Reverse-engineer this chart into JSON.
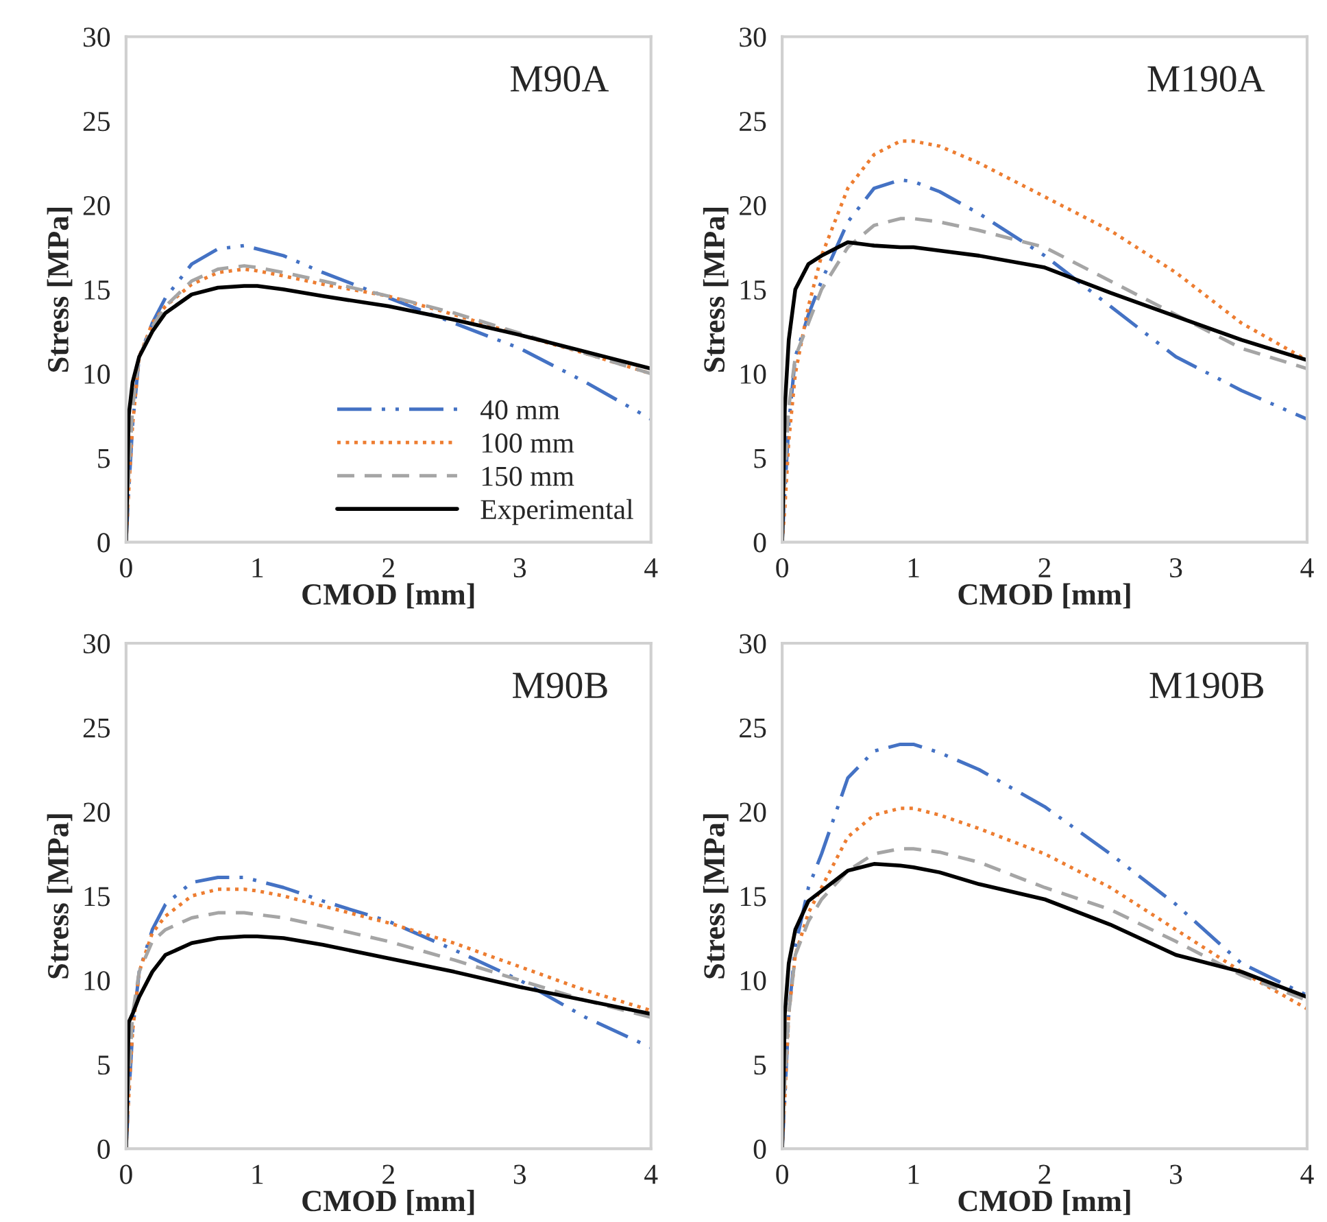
{
  "chart_data": [
    {
      "type": "line",
      "annotations": [
        "M90A"
      ],
      "xlabel": "CMOD [mm]",
      "ylabel": "Stress [MPa]",
      "xlim": [
        0,
        4
      ],
      "ylim": [
        0,
        30
      ],
      "xticks": [
        0,
        1,
        2,
        3,
        4
      ],
      "yticks": [
        0,
        5,
        10,
        15,
        20,
        25,
        30
      ],
      "grid": false,
      "legend": "bottom right",
      "x": [
        0,
        0.02,
        0.05,
        0.1,
        0.2,
        0.3,
        0.5,
        0.7,
        0.9,
        1.0,
        1.2,
        1.5,
        2,
        2.5,
        3,
        3.5,
        4
      ],
      "series": [
        {
          "name": "40 mm",
          "color": "#4472c4",
          "line_style": "dashdot",
          "values": [
            0,
            3,
            7,
            11,
            13,
            14.5,
            16.5,
            17.4,
            17.6,
            17.4,
            17,
            16,
            14.5,
            13,
            11.5,
            9.5,
            7.3
          ]
        },
        {
          "name": "100 mm",
          "color": "#ed7d31",
          "line_style": "dotted",
          "values": [
            0,
            3,
            7,
            11,
            13,
            14,
            15.3,
            16,
            16.2,
            16.1,
            15.8,
            15.3,
            14.6,
            13.5,
            12.3,
            11.2,
            10
          ]
        },
        {
          "name": "150 mm",
          "color": "#a5a5a5",
          "line_style": "dashed",
          "values": [
            0,
            4,
            8,
            11,
            12.8,
            14,
            15.5,
            16.2,
            16.4,
            16.3,
            16,
            15.5,
            14.6,
            13.6,
            12.4,
            11.2,
            10
          ]
        },
        {
          "name": "Experimental",
          "color": "#000000",
          "line_style": "solid",
          "values": [
            0,
            7.5,
            9.5,
            11,
            12.5,
            13.6,
            14.7,
            15.1,
            15.2,
            15.2,
            15,
            14.6,
            14,
            13.2,
            12.3,
            11.3,
            10.3
          ]
        }
      ]
    },
    {
      "type": "line",
      "annotations": [
        "M190A"
      ],
      "xlabel": "CMOD [mm]",
      "ylabel": "Stress [MPa]",
      "xlim": [
        0,
        4
      ],
      "ylim": [
        0,
        30
      ],
      "xticks": [
        0,
        1,
        2,
        3,
        4
      ],
      "yticks": [
        0,
        5,
        10,
        15,
        20,
        25,
        30
      ],
      "grid": false,
      "x": [
        0,
        0.02,
        0.05,
        0.1,
        0.2,
        0.3,
        0.5,
        0.7,
        0.9,
        1.0,
        1.2,
        1.5,
        2,
        2.5,
        3,
        3.5,
        4
      ],
      "series": [
        {
          "color": "#4472c4",
          "line_style": "dashdot",
          "values": [
            0,
            3,
            7,
            11,
            13.5,
            15.5,
            19,
            21,
            21.5,
            21.4,
            20.8,
            19.5,
            17,
            14,
            11,
            9,
            7.3
          ]
        },
        {
          "color": "#ed7d31",
          "line_style": "dotted",
          "values": [
            0,
            2,
            6,
            10,
            14,
            17,
            21,
            23,
            23.8,
            23.8,
            23.5,
            22.5,
            20.5,
            18.5,
            16,
            13,
            10.8
          ]
        },
        {
          "color": "#a5a5a5",
          "line_style": "dashed",
          "values": [
            0,
            4,
            8,
            11,
            13,
            15,
            17.5,
            18.8,
            19.2,
            19.2,
            19,
            18.5,
            17.5,
            15.5,
            13.5,
            11.5,
            10.3
          ]
        },
        {
          "color": "#000000",
          "line_style": "solid",
          "values": [
            0,
            8,
            12,
            15,
            16.5,
            17,
            17.8,
            17.6,
            17.5,
            17.5,
            17.3,
            17,
            16.3,
            14.8,
            13.4,
            12,
            10.8
          ]
        }
      ]
    },
    {
      "type": "line",
      "annotations": [
        "M90B"
      ],
      "xlabel": "CMOD [mm]",
      "ylabel": "Stress [MPa]",
      "xlim": [
        0,
        4
      ],
      "ylim": [
        0,
        30
      ],
      "xticks": [
        0,
        1,
        2,
        3,
        4
      ],
      "yticks": [
        0,
        5,
        10,
        15,
        20,
        25,
        30
      ],
      "grid": false,
      "x": [
        0,
        0.02,
        0.05,
        0.1,
        0.2,
        0.3,
        0.5,
        0.7,
        0.9,
        1.0,
        1.2,
        1.5,
        2,
        2.5,
        3,
        3.5,
        4
      ],
      "series": [
        {
          "color": "#4472c4",
          "line_style": "dashdot",
          "values": [
            0,
            3,
            7,
            10.5,
            13,
            14.5,
            15.8,
            16.1,
            16.1,
            15.9,
            15.5,
            14.7,
            13.5,
            11.8,
            10,
            7.8,
            6
          ]
        },
        {
          "color": "#ed7d31",
          "line_style": "dotted",
          "values": [
            0,
            3,
            7,
            10.5,
            12.8,
            13.8,
            15,
            15.4,
            15.4,
            15.3,
            15,
            14.4,
            13.4,
            12.2,
            10.8,
            9.4,
            8.2
          ]
        },
        {
          "color": "#a5a5a5",
          "line_style": "dashed",
          "values": [
            0,
            4,
            8,
            10.5,
            12.3,
            13,
            13.7,
            14,
            14,
            13.9,
            13.7,
            13.2,
            12.3,
            11.2,
            10,
            8.8,
            7.8
          ]
        },
        {
          "color": "#000000",
          "line_style": "solid",
          "values": [
            0,
            7.5,
            8,
            9,
            10.5,
            11.5,
            12.2,
            12.5,
            12.6,
            12.6,
            12.5,
            12.1,
            11.3,
            10.5,
            9.6,
            8.8,
            8
          ]
        }
      ]
    },
    {
      "type": "line",
      "annotations": [
        "M190B"
      ],
      "xlabel": "CMOD [mm]",
      "ylabel": "Stress [MPa]",
      "xlim": [
        0,
        4
      ],
      "ylim": [
        0,
        30
      ],
      "xticks": [
        0,
        1,
        2,
        3,
        4
      ],
      "yticks": [
        0,
        5,
        10,
        15,
        20,
        25,
        30
      ],
      "grid": false,
      "x": [
        0,
        0.02,
        0.05,
        0.1,
        0.2,
        0.3,
        0.5,
        0.7,
        0.9,
        1.0,
        1.2,
        1.5,
        2,
        2.5,
        3,
        3.5,
        4
      ],
      "series": [
        {
          "color": "#4472c4",
          "line_style": "dashdot",
          "values": [
            0,
            3,
            8,
            12,
            15.5,
            17.5,
            22,
            23.6,
            24,
            24,
            23.5,
            22.5,
            20.3,
            17.5,
            14.5,
            11,
            9.1
          ]
        },
        {
          "color": "#ed7d31",
          "line_style": "dotted",
          "values": [
            0,
            3,
            8,
            11.5,
            14,
            15.5,
            18.5,
            19.8,
            20.2,
            20.2,
            19.8,
            19,
            17.5,
            15.5,
            13,
            10.5,
            8.3
          ]
        },
        {
          "color": "#a5a5a5",
          "line_style": "dashed",
          "values": [
            0,
            4,
            8,
            11.5,
            13.5,
            14.8,
            16.5,
            17.5,
            17.8,
            17.8,
            17.6,
            17,
            15.5,
            14.2,
            12.3,
            10.3,
            8.8
          ]
        },
        {
          "color": "#000000",
          "line_style": "solid",
          "values": [
            0,
            8,
            11,
            13,
            14.7,
            15.3,
            16.5,
            16.9,
            16.8,
            16.7,
            16.4,
            15.7,
            14.8,
            13.3,
            11.5,
            10.5,
            9
          ]
        }
      ]
    }
  ]
}
